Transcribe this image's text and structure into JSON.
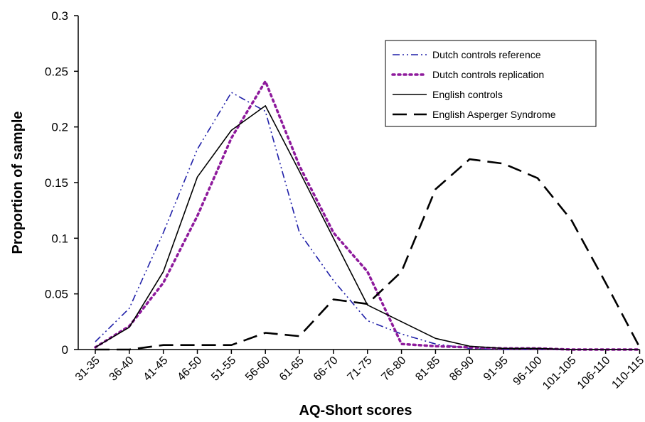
{
  "chart_data": {
    "type": "line",
    "title": "",
    "xlabel": "AQ-Short scores",
    "ylabel": "Proportion of sample",
    "ylim": [
      0,
      0.3
    ],
    "yticks": [
      "0",
      "0.05",
      "0.1",
      "0.15",
      "0.2",
      "0.25",
      "0.3"
    ],
    "grid": false,
    "legend_position": "top-right",
    "categories": [
      "31-35",
      "36-40",
      "41-45",
      "46-50",
      "51-55",
      "56-60",
      "61-65",
      "66-70",
      "71-75",
      "76-80",
      "81-85",
      "86-90",
      "91-95",
      "96-100",
      "101-105",
      "106-110",
      "110-115"
    ],
    "series": [
      {
        "name": "Dutch controls reference",
        "color": "#1f1fa8",
        "dash": "dash-dot-dot",
        "values": [
          0.007,
          0.037,
          0.105,
          0.18,
          0.231,
          0.214,
          0.105,
          0.062,
          0.026,
          0.014,
          0.005,
          0.001,
          0.0,
          0.0,
          0.0,
          0.0,
          0.0
        ]
      },
      {
        "name": "Dutch controls replication",
        "color": "#8e1a9c",
        "dash": "dotted",
        "values": [
          0.002,
          0.021,
          0.06,
          0.12,
          0.19,
          0.241,
          0.165,
          0.105,
          0.07,
          0.005,
          0.003,
          0.002,
          0.001,
          0.001,
          0.0,
          0.0,
          0.0
        ]
      },
      {
        "name": "English controls",
        "color": "#000000",
        "dash": "solid",
        "values": [
          0.002,
          0.02,
          0.07,
          0.155,
          0.197,
          0.219,
          0.16,
          0.1,
          0.04,
          0.025,
          0.01,
          0.003,
          0.001,
          0.001,
          0.0,
          0.0,
          0.0
        ]
      },
      {
        "name": "English Asperger Syndrome",
        "color": "#000000",
        "dash": "long-dash",
        "values": [
          0.0,
          0.0,
          0.004,
          0.004,
          0.004,
          0.015,
          0.012,
          0.045,
          0.041,
          0.07,
          0.144,
          0.171,
          0.167,
          0.154,
          0.116,
          0.06,
          0.002
        ]
      }
    ]
  }
}
